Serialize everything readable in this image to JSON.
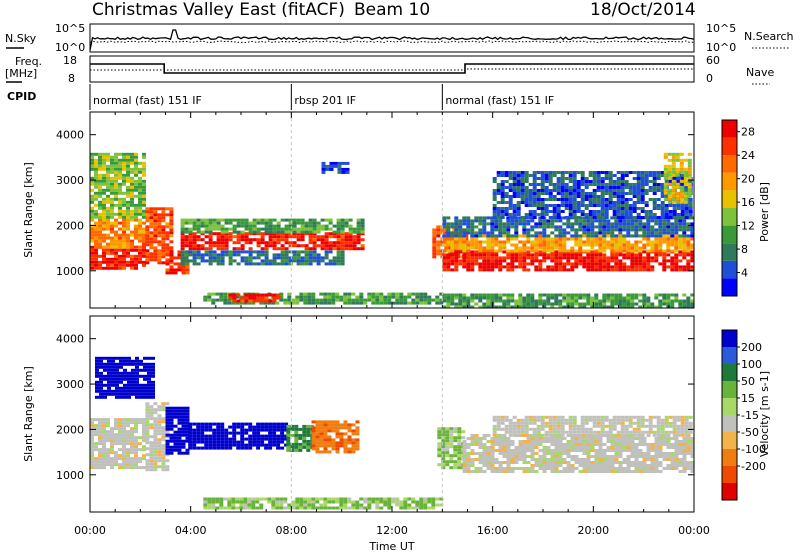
{
  "header": {
    "station": "Christmas Valley East (fitACF)",
    "beam": "Beam 10",
    "date": "18/Oct/2014"
  },
  "top_panels": {
    "nsky_label": "N.Sky",
    "nsky_ticks": [
      "10^5",
      "10^0"
    ],
    "nsearch_label": "N.Search",
    "freq_label_1": "Freq.",
    "freq_label_2": "[MHz]",
    "freq_ticks": [
      "18",
      "8"
    ],
    "nave_label": "Nave",
    "nave_ticks": [
      "60",
      "0"
    ],
    "cpid_label": "CPID",
    "cpid_segments": [
      {
        "label": "normal (fast) 151 IF",
        "start_h": 0,
        "end_h": 8
      },
      {
        "label": "rbsp 201 IF",
        "start_h": 8,
        "end_h": 14
      },
      {
        "label": "normal (fast) 151 IF",
        "start_h": 14,
        "end_h": 24
      }
    ]
  },
  "colors": {
    "power": [
      "#0000ff",
      "#1e4fd6",
      "#2f7a5a",
      "#3a9a3a",
      "#7cc23a",
      "#e8c100",
      "#ff9900",
      "#ff6a00",
      "#ff3000",
      "#ee0000"
    ],
    "velocity": [
      "#0000cc",
      "#2a5bd8",
      "#1e7a3a",
      "#6ab33a",
      "#a8d86a",
      "#c0c0bc",
      "#f3b34a",
      "#f07d10",
      "#f04a00",
      "#e00000"
    ]
  },
  "chart_data": [
    {
      "type": "heatmap",
      "name": "power",
      "ylabel": "Slant Range [km]",
      "ylim": [
        180,
        4500
      ],
      "xlim": [
        0,
        24
      ],
      "yticks": [
        1000,
        2000,
        3000,
        4000
      ],
      "colorbar_label": "Power [dB]",
      "colorbar_ticks": [
        4,
        8,
        12,
        16,
        20,
        24,
        28
      ],
      "colorbar_range": [
        0,
        30
      ],
      "bands": [
        {
          "t0": 0.0,
          "t1": 2.2,
          "r0": 1050,
          "r1": 1550,
          "v": 27
        },
        {
          "t0": 0.0,
          "t1": 2.2,
          "r0": 1550,
          "r1": 2150,
          "v": 21
        },
        {
          "t0": 0.0,
          "t1": 2.2,
          "r0": 2150,
          "r1": 3600,
          "v": 13
        },
        {
          "t0": 2.2,
          "t1": 3.2,
          "r0": 1200,
          "r1": 2400,
          "v": 24
        },
        {
          "t0": 3.0,
          "t1": 3.8,
          "r0": 950,
          "r1": 1450,
          "v": 26
        },
        {
          "t0": 3.6,
          "t1": 10.8,
          "r0": 1500,
          "r1": 1850,
          "v": 27
        },
        {
          "t0": 3.6,
          "t1": 10.8,
          "r0": 1850,
          "r1": 2150,
          "v": 11
        },
        {
          "t0": 3.6,
          "t1": 10.0,
          "r0": 1150,
          "r1": 1450,
          "v": 7
        },
        {
          "t0": 4.5,
          "t1": 14.0,
          "r0": 260,
          "r1": 520,
          "v": 10
        },
        {
          "t0": 5.5,
          "t1": 7.5,
          "r0": 350,
          "r1": 500,
          "v": 27
        },
        {
          "t0": 13.6,
          "t1": 15.0,
          "r0": 1300,
          "r1": 2000,
          "v": 24
        },
        {
          "t0": 14.0,
          "t1": 23.9,
          "r0": 1050,
          "r1": 1450,
          "v": 28
        },
        {
          "t0": 14.0,
          "t1": 23.9,
          "r0": 1450,
          "r1": 1800,
          "v": 19
        },
        {
          "t0": 14.0,
          "t1": 23.9,
          "r0": 1800,
          "r1": 2200,
          "v": 6
        },
        {
          "t0": 14.0,
          "t1": 23.9,
          "r0": 200,
          "r1": 500,
          "v": 10
        },
        {
          "t0": 16.0,
          "t1": 23.9,
          "r0": 2200,
          "r1": 3200,
          "v": 5
        },
        {
          "t0": 22.8,
          "t1": 23.9,
          "r0": 2500,
          "r1": 3600,
          "v": 16
        },
        {
          "t0": 9.2,
          "t1": 10.2,
          "r0": 3200,
          "r1": 3400,
          "v": 4
        }
      ]
    },
    {
      "type": "heatmap",
      "name": "velocity",
      "ylabel": "Slant Range [km]",
      "xlabel": "Time UT",
      "ylim": [
        180,
        4500
      ],
      "xlim": [
        0,
        24
      ],
      "yticks": [
        1000,
        2000,
        3000,
        4000
      ],
      "xticks": [
        "00:00",
        "04:00",
        "08:00",
        "12:00",
        "16:00",
        "20:00",
        "00:00"
      ],
      "colorbar_label": "Velocity [m s-1]",
      "colorbar_ticks": [
        200,
        100,
        50,
        15,
        -15,
        -50,
        -100,
        -200
      ],
      "bands": [
        {
          "t0": 0.0,
          "t1": 2.2,
          "r0": 1150,
          "r1": 2250,
          "v": 0
        },
        {
          "t0": 0.2,
          "t1": 2.5,
          "r0": 2700,
          "r1": 3600,
          "v": 220
        },
        {
          "t0": 2.2,
          "t1": 3.0,
          "r0": 1100,
          "r1": 2600,
          "v": 0
        },
        {
          "t0": 3.0,
          "t1": 3.9,
          "r0": 1500,
          "r1": 2500,
          "v": 220
        },
        {
          "t0": 3.9,
          "t1": 7.8,
          "r0": 1600,
          "r1": 2150,
          "v": 220
        },
        {
          "t0": 7.8,
          "t1": 8.8,
          "r0": 1550,
          "r1": 2100,
          "v": 60
        },
        {
          "t0": 8.8,
          "t1": 10.6,
          "r0": 1500,
          "r1": 2200,
          "v": -90
        },
        {
          "t0": 4.5,
          "t1": 14.0,
          "r0": 250,
          "r1": 500,
          "v": 30
        },
        {
          "t0": 13.8,
          "t1": 14.8,
          "r0": 1150,
          "r1": 2050,
          "v": 30
        },
        {
          "t0": 14.8,
          "t1": 23.9,
          "r0": 1050,
          "r1": 1900,
          "v": 0
        },
        {
          "t0": 16.0,
          "t1": 23.9,
          "r0": 1900,
          "r1": 2300,
          "v": 0
        }
      ]
    }
  ]
}
